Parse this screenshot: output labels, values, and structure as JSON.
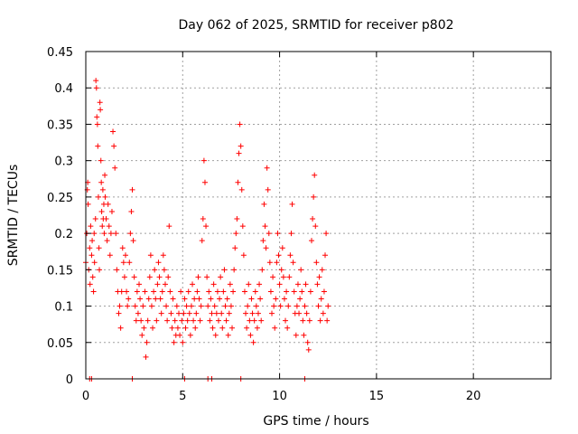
{
  "chart_data": {
    "type": "scatter",
    "title": "Day 062 of 2025, SRMTID for receiver p802",
    "xlabel": "GPS time / hours",
    "ylabel": "SRMTID / TECUs",
    "xlim": [
      0,
      24
    ],
    "ylim": [
      0,
      0.45
    ],
    "xticks": [
      0,
      5,
      10,
      15,
      20
    ],
    "xtick_labels": [
      "0",
      "5",
      "10",
      "15",
      "20"
    ],
    "yticks": [
      0,
      0.05,
      0.1,
      0.15,
      0.2,
      0.25,
      0.3,
      0.35,
      0.4,
      0.45
    ],
    "ytick_labels": [
      "0",
      "0.05",
      "0.1",
      "0.15",
      "0.2",
      "0.25",
      "0.3",
      "0.35",
      "0.4",
      "0.45"
    ],
    "grid": true,
    "marker": "+",
    "color": "#ff0000",
    "series": [
      {
        "name": "SRMTID",
        "points": [
          [
            0.0,
            0.16
          ],
          [
            0.05,
            0.2
          ],
          [
            0.08,
            0.26
          ],
          [
            0.1,
            0.27
          ],
          [
            0.12,
            0.24
          ],
          [
            0.15,
            0.15
          ],
          [
            0.2,
            0.18
          ],
          [
            0.22,
            0.13
          ],
          [
            0.25,
            0.21
          ],
          [
            0.3,
            0.17
          ],
          [
            0.33,
            0.19
          ],
          [
            0.36,
            0.14
          ],
          [
            0.4,
            0.12
          ],
          [
            0.43,
            0.2
          ],
          [
            0.45,
            0.16
          ],
          [
            0.5,
            0.22
          ],
          [
            0.52,
            0.41
          ],
          [
            0.55,
            0.4
          ],
          [
            0.57,
            0.36
          ],
          [
            0.6,
            0.35
          ],
          [
            0.62,
            0.32
          ],
          [
            0.65,
            0.25
          ],
          [
            0.68,
            0.18
          ],
          [
            0.7,
            0.15
          ],
          [
            0.73,
            0.38
          ],
          [
            0.75,
            0.37
          ],
          [
            0.78,
            0.3
          ],
          [
            0.8,
            0.27
          ],
          [
            0.82,
            0.23
          ],
          [
            0.85,
            0.21
          ],
          [
            0.88,
            0.26
          ],
          [
            0.9,
            0.22
          ],
          [
            0.93,
            0.24
          ],
          [
            0.95,
            0.2
          ],
          [
            0.98,
            0.28
          ],
          [
            1.0,
            0.25
          ],
          [
            1.05,
            0.22
          ],
          [
            1.1,
            0.19
          ],
          [
            1.15,
            0.24
          ],
          [
            1.2,
            0.21
          ],
          [
            1.25,
            0.17
          ],
          [
            1.3,
            0.2
          ],
          [
            1.35,
            0.23
          ],
          [
            1.4,
            0.34
          ],
          [
            1.45,
            0.32
          ],
          [
            1.5,
            0.29
          ],
          [
            1.55,
            0.2
          ],
          [
            1.6,
            0.15
          ],
          [
            1.65,
            0.12
          ],
          [
            1.7,
            0.09
          ],
          [
            1.75,
            0.1
          ],
          [
            1.8,
            0.07
          ],
          [
            1.85,
            0.12
          ],
          [
            1.9,
            0.18
          ],
          [
            1.95,
            0.16
          ],
          [
            2.0,
            0.14
          ],
          [
            2.05,
            0.17
          ],
          [
            2.1,
            0.12
          ],
          [
            2.15,
            0.1
          ],
          [
            2.2,
            0.11
          ],
          [
            2.25,
            0.16
          ],
          [
            2.3,
            0.2
          ],
          [
            2.35,
            0.23
          ],
          [
            2.4,
            0.26
          ],
          [
            2.45,
            0.19
          ],
          [
            2.5,
            0.14
          ],
          [
            2.55,
            0.1
          ],
          [
            2.6,
            0.08
          ],
          [
            2.65,
            0.12
          ],
          [
            2.7,
            0.09
          ],
          [
            2.75,
            0.13
          ],
          [
            2.8,
            0.11
          ],
          [
            2.85,
            0.08
          ],
          [
            2.9,
            0.06
          ],
          [
            2.95,
            0.1
          ],
          [
            3.0,
            0.07
          ],
          [
            3.05,
            0.12
          ],
          [
            3.1,
            0.03
          ],
          [
            3.15,
            0.05
          ],
          [
            3.2,
            0.08
          ],
          [
            3.25,
            0.11
          ],
          [
            3.3,
            0.14
          ],
          [
            3.35,
            0.17
          ],
          [
            3.4,
            0.1
          ],
          [
            3.45,
            0.07
          ],
          [
            3.5,
            0.12
          ],
          [
            3.55,
            0.15
          ],
          [
            3.6,
            0.11
          ],
          [
            3.65,
            0.08
          ],
          [
            3.7,
            0.13
          ],
          [
            3.75,
            0.16
          ],
          [
            3.8,
            0.14
          ],
          [
            3.85,
            0.11
          ],
          [
            3.9,
            0.09
          ],
          [
            3.95,
            0.12
          ],
          [
            4.0,
            0.17
          ],
          [
            4.05,
            0.15
          ],
          [
            4.1,
            0.13
          ],
          [
            4.15,
            0.1
          ],
          [
            4.2,
            0.08
          ],
          [
            4.25,
            0.14
          ],
          [
            4.3,
            0.21
          ],
          [
            4.35,
            0.12
          ],
          [
            4.4,
            0.09
          ],
          [
            4.45,
            0.07
          ],
          [
            4.5,
            0.11
          ],
          [
            4.55,
            0.05
          ],
          [
            4.6,
            0.08
          ],
          [
            4.65,
            0.06
          ],
          [
            4.7,
            0.1
          ],
          [
            4.75,
            0.07
          ],
          [
            4.8,
            0.09
          ],
          [
            4.85,
            0.06
          ],
          [
            4.9,
            0.12
          ],
          [
            4.95,
            0.08
          ],
          [
            5.0,
            0.05
          ],
          [
            5.05,
            0.09
          ],
          [
            5.1,
            0.11
          ],
          [
            5.15,
            0.07
          ],
          [
            5.2,
            0.1
          ],
          [
            5.25,
            0.08
          ],
          [
            5.3,
            0.12
          ],
          [
            5.35,
            0.09
          ],
          [
            5.4,
            0.06
          ],
          [
            5.45,
            0.1
          ],
          [
            5.5,
            0.13
          ],
          [
            5.55,
            0.08
          ],
          [
            5.6,
            0.11
          ],
          [
            5.65,
            0.07
          ],
          [
            5.7,
            0.09
          ],
          [
            5.75,
            0.12
          ],
          [
            5.8,
            0.14
          ],
          [
            5.85,
            0.11
          ],
          [
            5.9,
            0.08
          ],
          [
            5.95,
            0.1
          ],
          [
            6.0,
            0.19
          ],
          [
            6.05,
            0.22
          ],
          [
            6.1,
            0.3
          ],
          [
            6.15,
            0.27
          ],
          [
            6.2,
            0.21
          ],
          [
            6.25,
            0.14
          ],
          [
            6.3,
            0.1
          ],
          [
            6.35,
            0.12
          ],
          [
            6.4,
            0.08
          ],
          [
            6.45,
            0.11
          ],
          [
            6.5,
            0.09
          ],
          [
            6.55,
            0.07
          ],
          [
            6.6,
            0.13
          ],
          [
            6.65,
            0.1
          ],
          [
            6.7,
            0.06
          ],
          [
            6.75,
            0.09
          ],
          [
            6.8,
            0.12
          ],
          [
            6.85,
            0.08
          ],
          [
            6.9,
            0.11
          ],
          [
            6.95,
            0.14
          ],
          [
            7.0,
            0.09
          ],
          [
            7.05,
            0.07
          ],
          [
            7.1,
            0.12
          ],
          [
            7.15,
            0.15
          ],
          [
            7.2,
            0.1
          ],
          [
            7.25,
            0.08
          ],
          [
            7.3,
            0.11
          ],
          [
            7.35,
            0.06
          ],
          [
            7.4,
            0.09
          ],
          [
            7.45,
            0.13
          ],
          [
            7.5,
            0.1
          ],
          [
            7.55,
            0.07
          ],
          [
            7.6,
            0.12
          ],
          [
            7.65,
            0.15
          ],
          [
            7.7,
            0.18
          ],
          [
            7.75,
            0.2
          ],
          [
            7.8,
            0.22
          ],
          [
            7.85,
            0.27
          ],
          [
            7.9,
            0.31
          ],
          [
            7.95,
            0.35
          ],
          [
            8.0,
            0.32
          ],
          [
            8.05,
            0.26
          ],
          [
            8.1,
            0.21
          ],
          [
            8.15,
            0.17
          ],
          [
            8.2,
            0.12
          ],
          [
            8.25,
            0.09
          ],
          [
            8.3,
            0.07
          ],
          [
            8.35,
            0.1
          ],
          [
            8.4,
            0.13
          ],
          [
            8.45,
            0.08
          ],
          [
            8.5,
            0.06
          ],
          [
            8.55,
            0.11
          ],
          [
            8.6,
            0.09
          ],
          [
            8.65,
            0.05
          ],
          [
            8.7,
            0.08
          ],
          [
            8.75,
            0.12
          ],
          [
            8.8,
            0.1
          ],
          [
            8.85,
            0.07
          ],
          [
            8.9,
            0.09
          ],
          [
            8.95,
            0.13
          ],
          [
            9.0,
            0.11
          ],
          [
            9.05,
            0.08
          ],
          [
            9.1,
            0.15
          ],
          [
            9.15,
            0.19
          ],
          [
            9.2,
            0.24
          ],
          [
            9.25,
            0.21
          ],
          [
            9.3,
            0.18
          ],
          [
            9.35,
            0.29
          ],
          [
            9.4,
            0.26
          ],
          [
            9.45,
            0.2
          ],
          [
            9.5,
            0.16
          ],
          [
            9.55,
            0.12
          ],
          [
            9.6,
            0.09
          ],
          [
            9.65,
            0.14
          ],
          [
            9.7,
            0.1
          ],
          [
            9.75,
            0.07
          ],
          [
            9.8,
            0.11
          ],
          [
            9.85,
            0.16
          ],
          [
            9.9,
            0.2
          ],
          [
            9.95,
            0.17
          ],
          [
            10.0,
            0.13
          ],
          [
            10.05,
            0.1
          ],
          [
            10.1,
            0.15
          ],
          [
            10.15,
            0.18
          ],
          [
            10.2,
            0.14
          ],
          [
            10.25,
            0.11
          ],
          [
            10.3,
            0.08
          ],
          [
            10.35,
            0.12
          ],
          [
            10.4,
            0.07
          ],
          [
            10.45,
            0.1
          ],
          [
            10.5,
            0.14
          ],
          [
            10.55,
            0.17
          ],
          [
            10.6,
            0.2
          ],
          [
            10.65,
            0.24
          ],
          [
            10.7,
            0.16
          ],
          [
            10.75,
            0.12
          ],
          [
            10.8,
            0.09
          ],
          [
            10.85,
            0.06
          ],
          [
            10.9,
            0.1
          ],
          [
            10.95,
            0.13
          ],
          [
            11.0,
            0.09
          ],
          [
            11.05,
            0.11
          ],
          [
            11.1,
            0.15
          ],
          [
            11.15,
            0.12
          ],
          [
            11.2,
            0.08
          ],
          [
            11.25,
            0.06
          ],
          [
            11.3,
            0.1
          ],
          [
            11.35,
            0.13
          ],
          [
            11.4,
            0.09
          ],
          [
            11.45,
            0.05
          ],
          [
            11.5,
            0.04
          ],
          [
            11.55,
            0.08
          ],
          [
            11.6,
            0.12
          ],
          [
            11.65,
            0.19
          ],
          [
            11.7,
            0.22
          ],
          [
            11.75,
            0.25
          ],
          [
            11.8,
            0.28
          ],
          [
            11.85,
            0.21
          ],
          [
            11.9,
            0.16
          ],
          [
            11.95,
            0.13
          ],
          [
            12.0,
            0.1
          ],
          [
            12.05,
            0.14
          ],
          [
            12.1,
            0.08
          ],
          [
            12.15,
            0.11
          ],
          [
            12.2,
            0.15
          ],
          [
            12.25,
            0.09
          ],
          [
            12.3,
            0.12
          ],
          [
            12.35,
            0.17
          ],
          [
            12.4,
            0.2
          ],
          [
            12.45,
            0.08
          ],
          [
            12.5,
            0.1
          ],
          [
            0.2,
            0.0
          ],
          [
            0.3,
            0.0
          ],
          [
            2.4,
            0.0
          ],
          [
            5.1,
            0.0
          ],
          [
            6.3,
            0.0
          ],
          [
            6.5,
            0.0
          ],
          [
            8.0,
            0.0
          ],
          [
            11.3,
            0.0
          ]
        ]
      }
    ]
  }
}
